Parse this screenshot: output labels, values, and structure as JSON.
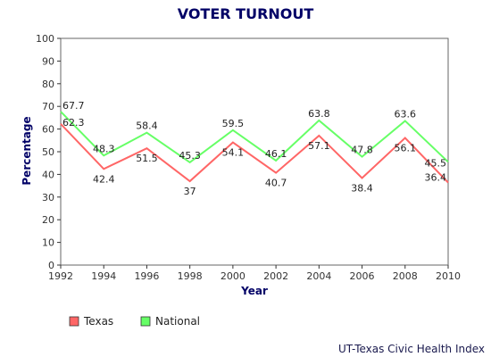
{
  "chart_data": {
    "type": "line",
    "title": "VOTER TURNOUT",
    "xlabel": "Year",
    "ylabel": "Percentage",
    "x": [
      1992,
      1994,
      1996,
      1998,
      2000,
      2002,
      2004,
      2006,
      2008,
      2010
    ],
    "xticks": [
      "1992",
      "1994",
      "1996",
      "1998",
      "2000",
      "2002",
      "2004",
      "2006",
      "2008",
      "2010"
    ],
    "ylim": [
      0,
      100
    ],
    "yticks": [
      "0",
      "10",
      "20",
      "30",
      "40",
      "50",
      "60",
      "70",
      "80",
      "90",
      "100"
    ],
    "grid": false,
    "legend": "bottom-left",
    "series": [
      {
        "name": "Texas",
        "color": "#ff6666",
        "values": [
          62.3,
          42.4,
          51.5,
          37,
          54.1,
          40.7,
          57.1,
          38.4,
          56.1,
          36.4
        ],
        "labels": [
          "62.3",
          "42.4",
          "51.5",
          "37",
          "54.1",
          "40.7",
          "57.1",
          "38.4",
          "56.1",
          "36.4"
        ]
      },
      {
        "name": "National",
        "color": "#66ff66",
        "values": [
          67.7,
          48.3,
          58.4,
          45.3,
          59.5,
          46.1,
          63.8,
          47.8,
          63.6,
          45.5
        ],
        "labels": [
          "67.7",
          "48.3",
          "58.4",
          "45.3",
          "59.5",
          "46.1",
          "63.8",
          "47.8",
          "63.6",
          "45.5"
        ]
      }
    ],
    "source": "UT-Texas Civic Health Index",
    "colors": {
      "title": "#000066",
      "axis_label": "#000066",
      "axis": "#333333"
    }
  }
}
